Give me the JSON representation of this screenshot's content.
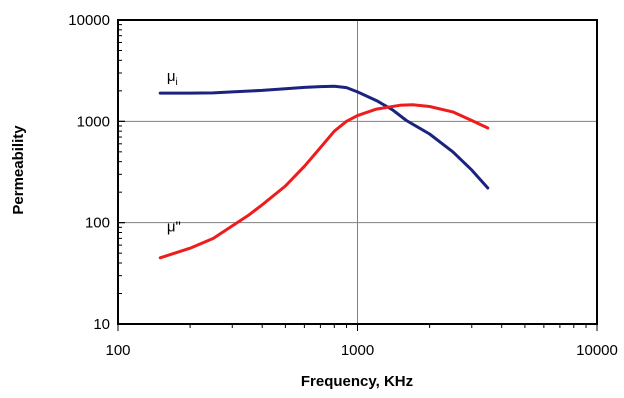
{
  "chart_data": {
    "type": "line",
    "x_scale": "log",
    "y_scale": "log",
    "xlim": [
      100,
      10000
    ],
    "ylim": [
      10,
      10000
    ],
    "xlabel": "Frequency, KHz",
    "ylabel": "Permeability",
    "x_ticks": [
      "100",
      "1000",
      "10000"
    ],
    "y_ticks": [
      "10",
      "100",
      "1000",
      "10000"
    ],
    "grid": "major",
    "legend": "none",
    "series": [
      {
        "name": "",
        "color": "#1a237e",
        "points": [
          [
            150,
            1900
          ],
          [
            200,
            1900
          ],
          [
            250,
            1910
          ],
          [
            300,
            1950
          ],
          [
            400,
            2020
          ],
          [
            500,
            2100
          ],
          [
            600,
            2160
          ],
          [
            700,
            2200
          ],
          [
            800,
            2220
          ],
          [
            900,
            2150
          ],
          [
            1000,
            1950
          ],
          [
            1200,
            1600
          ],
          [
            1400,
            1300
          ],
          [
            1600,
            1020
          ],
          [
            2000,
            750
          ],
          [
            2500,
            500
          ],
          [
            3000,
            330
          ],
          [
            3500,
            220
          ]
        ]
      },
      {
        "name": "",
        "color": "#ee1c1c",
        "points": [
          [
            150,
            45
          ],
          [
            200,
            56
          ],
          [
            250,
            70
          ],
          [
            300,
            93
          ],
          [
            350,
            118
          ],
          [
            400,
            150
          ],
          [
            500,
            230
          ],
          [
            600,
            360
          ],
          [
            700,
            550
          ],
          [
            800,
            800
          ],
          [
            900,
            1000
          ],
          [
            1000,
            1140
          ],
          [
            1200,
            1320
          ],
          [
            1500,
            1440
          ],
          [
            1700,
            1460
          ],
          [
            2000,
            1400
          ],
          [
            2500,
            1240
          ],
          [
            3000,
            1020
          ],
          [
            3500,
            860
          ]
        ]
      }
    ],
    "annotations": [
      {
        "text": "μ",
        "sub": "i",
        "x": 160,
        "y": 2500
      },
      {
        "text": "μ\"",
        "sub": "",
        "x": 160,
        "y": 82
      }
    ]
  }
}
